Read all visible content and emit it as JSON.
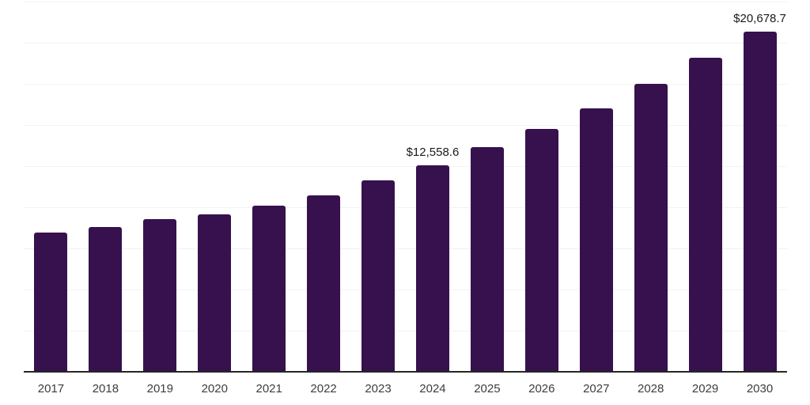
{
  "chart_data": {
    "type": "bar",
    "title": "",
    "xlabel": "",
    "ylabel": "",
    "categories": [
      "2017",
      "2018",
      "2019",
      "2020",
      "2021",
      "2022",
      "2023",
      "2024",
      "2025",
      "2026",
      "2027",
      "2028",
      "2029",
      "2030"
    ],
    "values": [
      8470,
      8810,
      9290,
      9580,
      10110,
      10740,
      11650,
      12558.6,
      13630,
      14780,
      16030,
      17480,
      19070,
      20678.7
    ],
    "data_labels": {
      "2024": "$12,558.6",
      "2030": "$20,678.7"
    },
    "ylim": [
      0,
      22500
    ],
    "gridline_step": 2500,
    "grid": true,
    "legend": "none",
    "colors": {
      "bar": "#36114d",
      "axis_line": "#262626",
      "gridline": "#f2f2f2",
      "tick_label": "#3d3d3d",
      "data_label": "#1a1a1a"
    }
  }
}
